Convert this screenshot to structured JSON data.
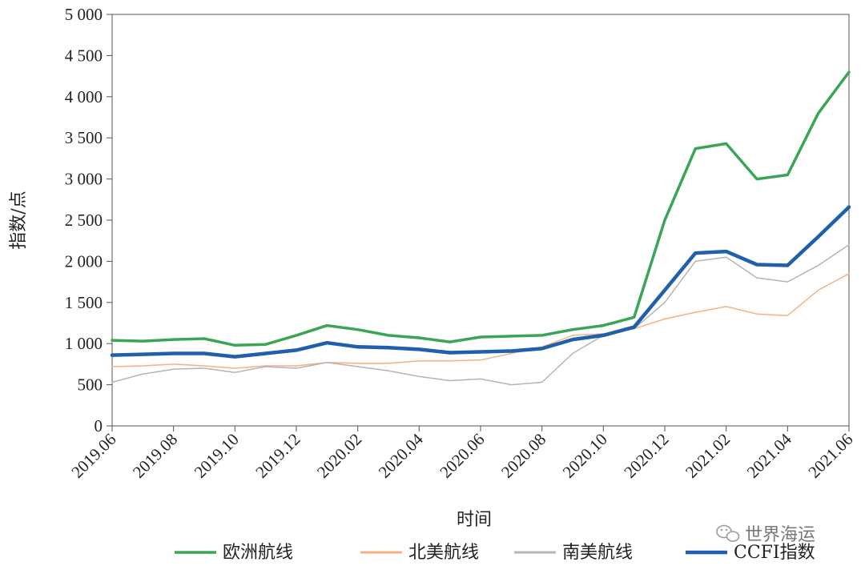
{
  "chart_data": {
    "type": "line",
    "xlabel": "时间",
    "ylabel": "指数/点",
    "ylim": [
      0,
      5000
    ],
    "xlim": [
      "2019-06",
      "2021-06"
    ],
    "grid": false,
    "legend_position": "bottom",
    "y_ticks": [
      "0",
      "500",
      "1 000",
      "1 500",
      "2 000",
      "2 500",
      "3 000",
      "3 500",
      "4 000",
      "4 500",
      "5 000"
    ],
    "x_ticks": [
      "2019.06",
      "2019.08",
      "2019.10",
      "2019.12",
      "2020.02",
      "2020.04",
      "2020.06",
      "2020.08",
      "2020.10",
      "2020.12",
      "2021.02",
      "2021.04",
      "2021.06"
    ],
    "x": [
      "2019-06",
      "2019-07",
      "2019-08",
      "2019-09",
      "2019-10",
      "2019-11",
      "2019-12",
      "2020-01",
      "2020-02",
      "2020-03",
      "2020-04",
      "2020-05",
      "2020-06",
      "2020-07",
      "2020-08",
      "2020-09",
      "2020-10",
      "2020-11",
      "2020-12",
      "2021-01",
      "2021-02",
      "2021-03",
      "2021-04",
      "2021-05",
      "2021-06"
    ],
    "series": [
      {
        "name": "欧洲航线",
        "color": "#3aa655",
        "width": 3.5,
        "values": [
          1040,
          1030,
          1050,
          1060,
          980,
          990,
          1100,
          1220,
          1170,
          1100,
          1070,
          1020,
          1080,
          1090,
          1100,
          1170,
          1220,
          1320,
          2500,
          3370,
          3430,
          3000,
          3050,
          3800,
          4300
        ]
      },
      {
        "name": "北美航线",
        "color": "#f4b183",
        "width": 1.5,
        "values": [
          720,
          730,
          750,
          730,
          700,
          730,
          730,
          770,
          760,
          760,
          790,
          790,
          800,
          880,
          960,
          1100,
          1120,
          1180,
          1300,
          1380,
          1450,
          1360,
          1340,
          1650,
          1850
        ]
      },
      {
        "name": "南美航线",
        "color": "#b4b4b4",
        "width": 1.5,
        "values": [
          530,
          630,
          690,
          700,
          650,
          720,
          700,
          770,
          720,
          670,
          600,
          550,
          570,
          500,
          530,
          880,
          1100,
          1180,
          1500,
          2000,
          2050,
          1800,
          1750,
          1950,
          2200
        ]
      },
      {
        "name": "CCFI指数",
        "color": "#1f5fab",
        "width": 4.5,
        "values": [
          860,
          870,
          880,
          880,
          840,
          880,
          920,
          1010,
          960,
          950,
          930,
          890,
          900,
          910,
          940,
          1050,
          1100,
          1200,
          1650,
          2100,
          2120,
          1960,
          1950,
          2300,
          2660
        ]
      }
    ]
  },
  "watermark": {
    "text": "世界海运",
    "icon": "wechat-icon"
  }
}
